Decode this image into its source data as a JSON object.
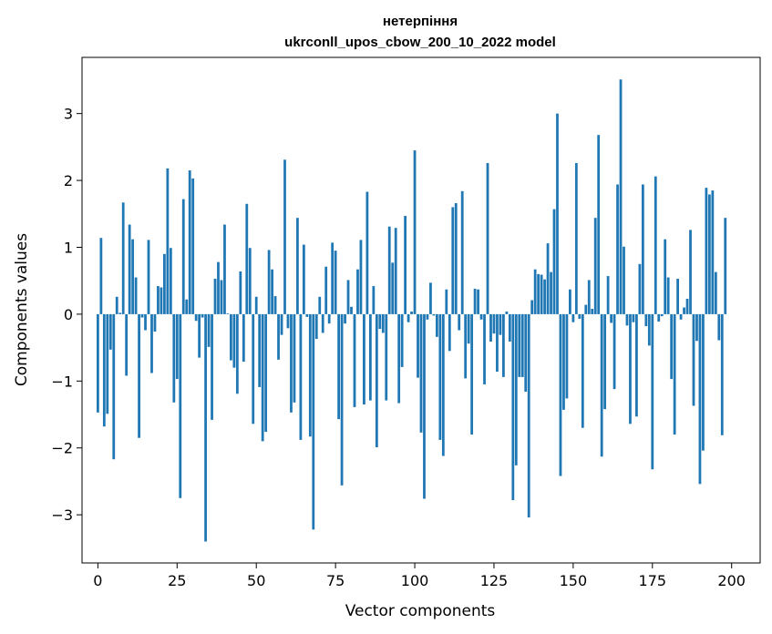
{
  "chart_data": {
    "type": "bar",
    "title": "нетерпіння",
    "subtitle": "ukrconll_upos_cbow_200_10_2022 model",
    "xlabel": "Vector components",
    "ylabel": "Components values",
    "xlim": [
      -5,
      209
    ],
    "ylim": [
      -3.72,
      3.84
    ],
    "xticks": [
      0,
      25,
      50,
      75,
      100,
      125,
      150,
      175,
      200
    ],
    "yticks": [
      -3,
      -2,
      -1,
      0,
      1,
      2,
      3
    ],
    "xtick_labels": [
      "0",
      "25",
      "50",
      "75",
      "100",
      "125",
      "150",
      "175",
      "200"
    ],
    "ytick_labels": [
      "−3",
      "−2",
      "−1",
      "0",
      "1",
      "2",
      "3"
    ],
    "bar_color": "#1f77b4",
    "grid": false,
    "values": [
      -1.47,
      1.14,
      -1.68,
      -1.49,
      -0.53,
      -2.17,
      0.26,
      0.02,
      1.67,
      -0.92,
      1.34,
      1.12,
      0.55,
      -1.85,
      -0.05,
      -0.24,
      1.11,
      -0.88,
      -0.26,
      0.42,
      0.4,
      0.9,
      2.18,
      0.99,
      -1.32,
      -0.97,
      -2.75,
      1.72,
      0.22,
      2.15,
      2.03,
      -0.1,
      -0.65,
      -0.05,
      -3.4,
      -0.49,
      -1.58,
      0.53,
      0.78,
      0.51,
      1.34,
      0.01,
      -0.69,
      -0.8,
      -1.19,
      0.64,
      -0.71,
      1.65,
      0.99,
      -1.64,
      0.26,
      -1.09,
      -1.9,
      -1.76,
      0.96,
      0.67,
      0.27,
      -0.68,
      -0.31,
      2.31,
      -0.21,
      -1.47,
      -1.32,
      1.44,
      -1.88,
      1.04,
      -0.04,
      -1.83,
      -3.22,
      -0.37,
      0.26,
      -0.28,
      0.71,
      -0.14,
      1.07,
      0.95,
      -1.57,
      -2.56,
      -0.14,
      0.51,
      0.11,
      -1.39,
      0.67,
      1.11,
      -1.35,
      1.83,
      -1.29,
      0.42,
      -1.99,
      -0.22,
      -0.28,
      -1.29,
      1.31,
      0.77,
      1.29,
      -1.33,
      -0.79,
      1.47,
      -0.12,
      0.04,
      2.45,
      -0.95,
      -1.77,
      -2.76,
      -0.08,
      0.47,
      -0.02,
      -0.34,
      -1.88,
      -2.12,
      0.37,
      -0.55,
      1.6,
      1.66,
      -0.24,
      1.84,
      -0.96,
      -0.44,
      -1.8,
      0.38,
      0.37,
      -0.08,
      -1.05,
      2.26,
      -0.41,
      -0.29,
      -0.86,
      -0.31,
      -0.94,
      0.04,
      -0.41,
      -2.78,
      -2.26,
      -0.94,
      -0.94,
      -1.16,
      -3.04,
      0.21,
      0.67,
      0.6,
      0.59,
      0.52,
      1.06,
      0.63,
      1.57,
      3.0,
      -2.42,
      -1.43,
      -1.26,
      0.37,
      -0.12,
      2.26,
      -0.07,
      -1.7,
      0.14,
      0.51,
      0.08,
      1.44,
      2.68,
      -2.13,
      -1.42,
      0.57,
      -0.13,
      -1.12,
      1.94,
      3.51,
      1.01,
      -0.17,
      -1.64,
      -0.12,
      -1.53,
      0.75,
      1.94,
      -0.18,
      -0.47,
      -2.32,
      2.06,
      -0.11,
      -0.03,
      1.12,
      0.55,
      -0.97,
      -1.8,
      0.53,
      -0.08,
      0.1,
      0.23,
      1.26,
      -1.37,
      -0.4,
      -2.54,
      -2.04,
      1.89,
      1.79,
      1.85,
      0.63,
      -0.39,
      -1.81,
      1.44
    ]
  }
}
